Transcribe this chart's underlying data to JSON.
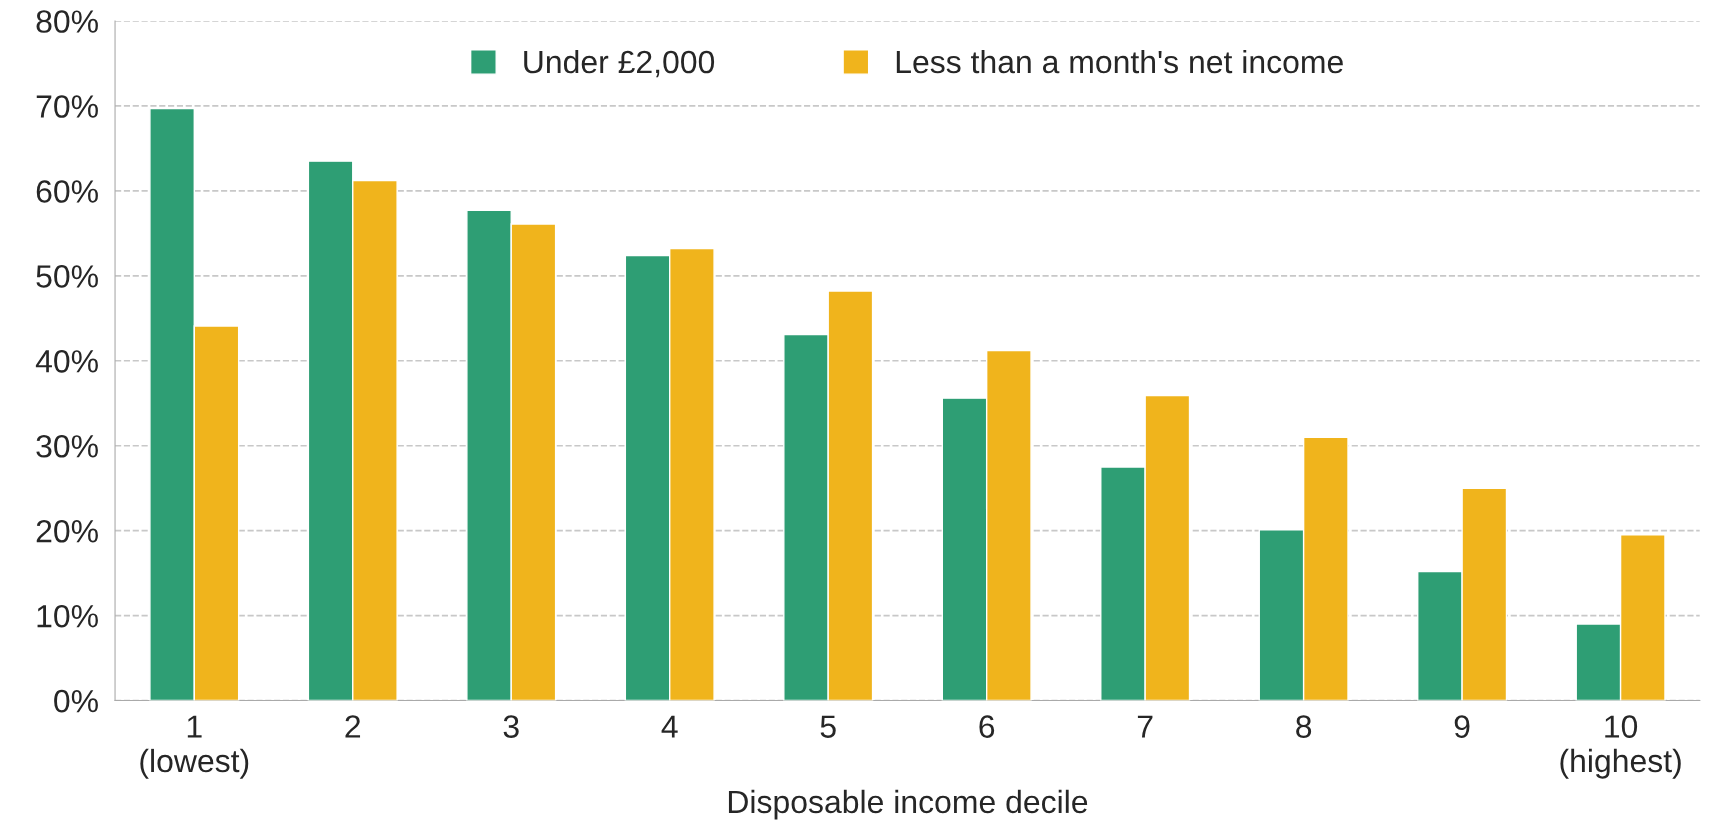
{
  "chart_data": {
    "type": "bar",
    "xlabel": "Disposable income decile",
    "categories": [
      "1\n(lowest)",
      "2",
      "3",
      "4",
      "5",
      "6",
      "7",
      "8",
      "9",
      "10\n(highest)"
    ],
    "series": [
      {
        "name": "Under £2,000",
        "color": "#2e9e74",
        "values": [
          69.7,
          63.5,
          57.7,
          52.4,
          43.1,
          35.6,
          27.5,
          20.1,
          15.2,
          9.0
        ]
      },
      {
        "name": "Less than a month's net income",
        "color": "#f0b41c",
        "values": [
          44.1,
          61.2,
          56.1,
          53.2,
          48.2,
          41.2,
          35.9,
          31.0,
          25.0,
          19.5
        ]
      }
    ],
    "ylim": [
      0,
      80
    ],
    "yticks": [
      {
        "value": 0,
        "label": "0%"
      },
      {
        "value": 10,
        "label": "10%"
      },
      {
        "value": 20,
        "label": "20%"
      },
      {
        "value": 30,
        "label": "30%"
      },
      {
        "value": 40,
        "label": "40%"
      },
      {
        "value": 50,
        "label": "50%"
      },
      {
        "value": 60,
        "label": "60%"
      },
      {
        "value": 70,
        "label": "70%"
      },
      {
        "value": 80,
        "label": "80%"
      }
    ],
    "grid": "y",
    "legend": "top"
  }
}
